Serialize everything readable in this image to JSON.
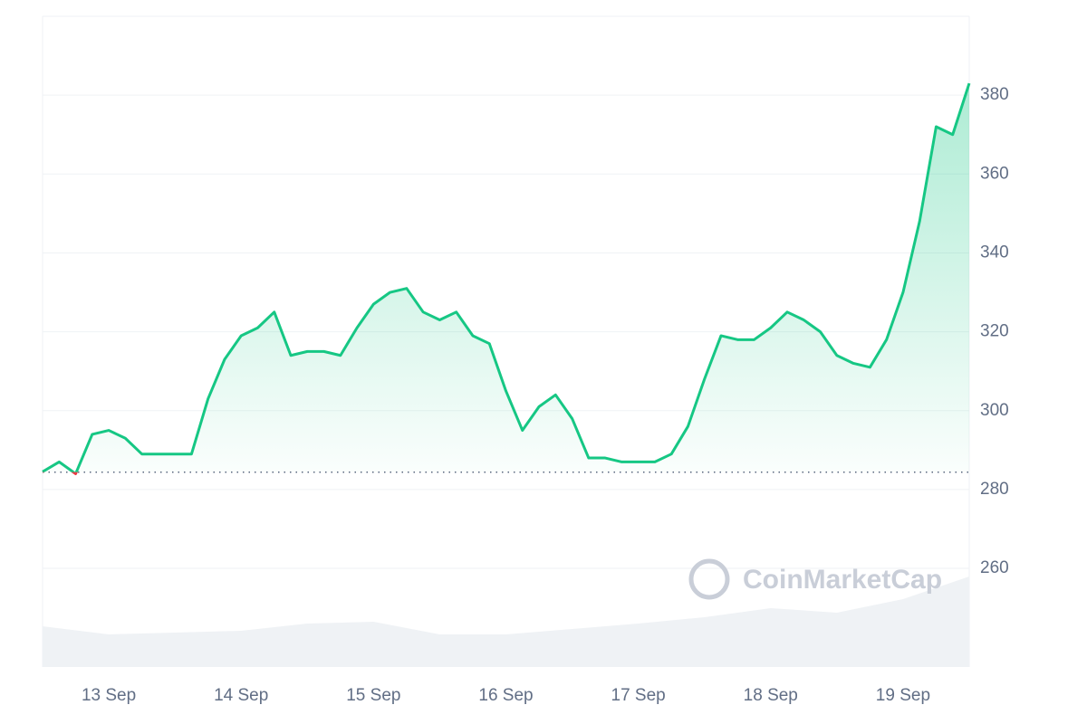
{
  "chart_data": {
    "type": "line",
    "categories": [
      null,
      null,
      null,
      null,
      "13 Sep",
      null,
      null,
      null,
      null,
      null,
      null,
      null,
      "14 Sep",
      null,
      null,
      null,
      null,
      null,
      null,
      null,
      "15 Sep",
      null,
      null,
      null,
      null,
      null,
      null,
      null,
      "16 Sep",
      null,
      null,
      null,
      null,
      null,
      null,
      null,
      "17 Sep",
      null,
      null,
      null,
      null,
      null,
      null,
      null,
      "18 Sep",
      null,
      null,
      null,
      null,
      null,
      null,
      null,
      "19 Sep",
      null,
      null,
      null,
      null
    ],
    "series": [
      {
        "color": "#16c784",
        "values": [
          284.5,
          287,
          284,
          294,
          295,
          293,
          289,
          289,
          289,
          289,
          303,
          313,
          319,
          321,
          325,
          314,
          315,
          315,
          314,
          321,
          327,
          330,
          331,
          325,
          323,
          325,
          319,
          317,
          305,
          295,
          301,
          304,
          298,
          288,
          288,
          287,
          287,
          287,
          289,
          296,
          308,
          319,
          318,
          318,
          321,
          325,
          323,
          320,
          314,
          312,
          311,
          318,
          330,
          348,
          372,
          370,
          383
        ]
      }
    ],
    "baseline": 284.4,
    "below_color": "#ea3943",
    "ylim": [
      235,
      400
    ],
    "yticks": [
      260,
      280,
      300,
      320,
      340,
      360,
      380
    ],
    "grid": true,
    "volume": {
      "color": "#eff2f5",
      "values": [
        45,
        36,
        38,
        40,
        48,
        50,
        36,
        36,
        42,
        48,
        55,
        65,
        60,
        75,
        100
      ],
      "ylim": [
        0,
        120
      ]
    },
    "watermark": "CoinMarketCap"
  }
}
